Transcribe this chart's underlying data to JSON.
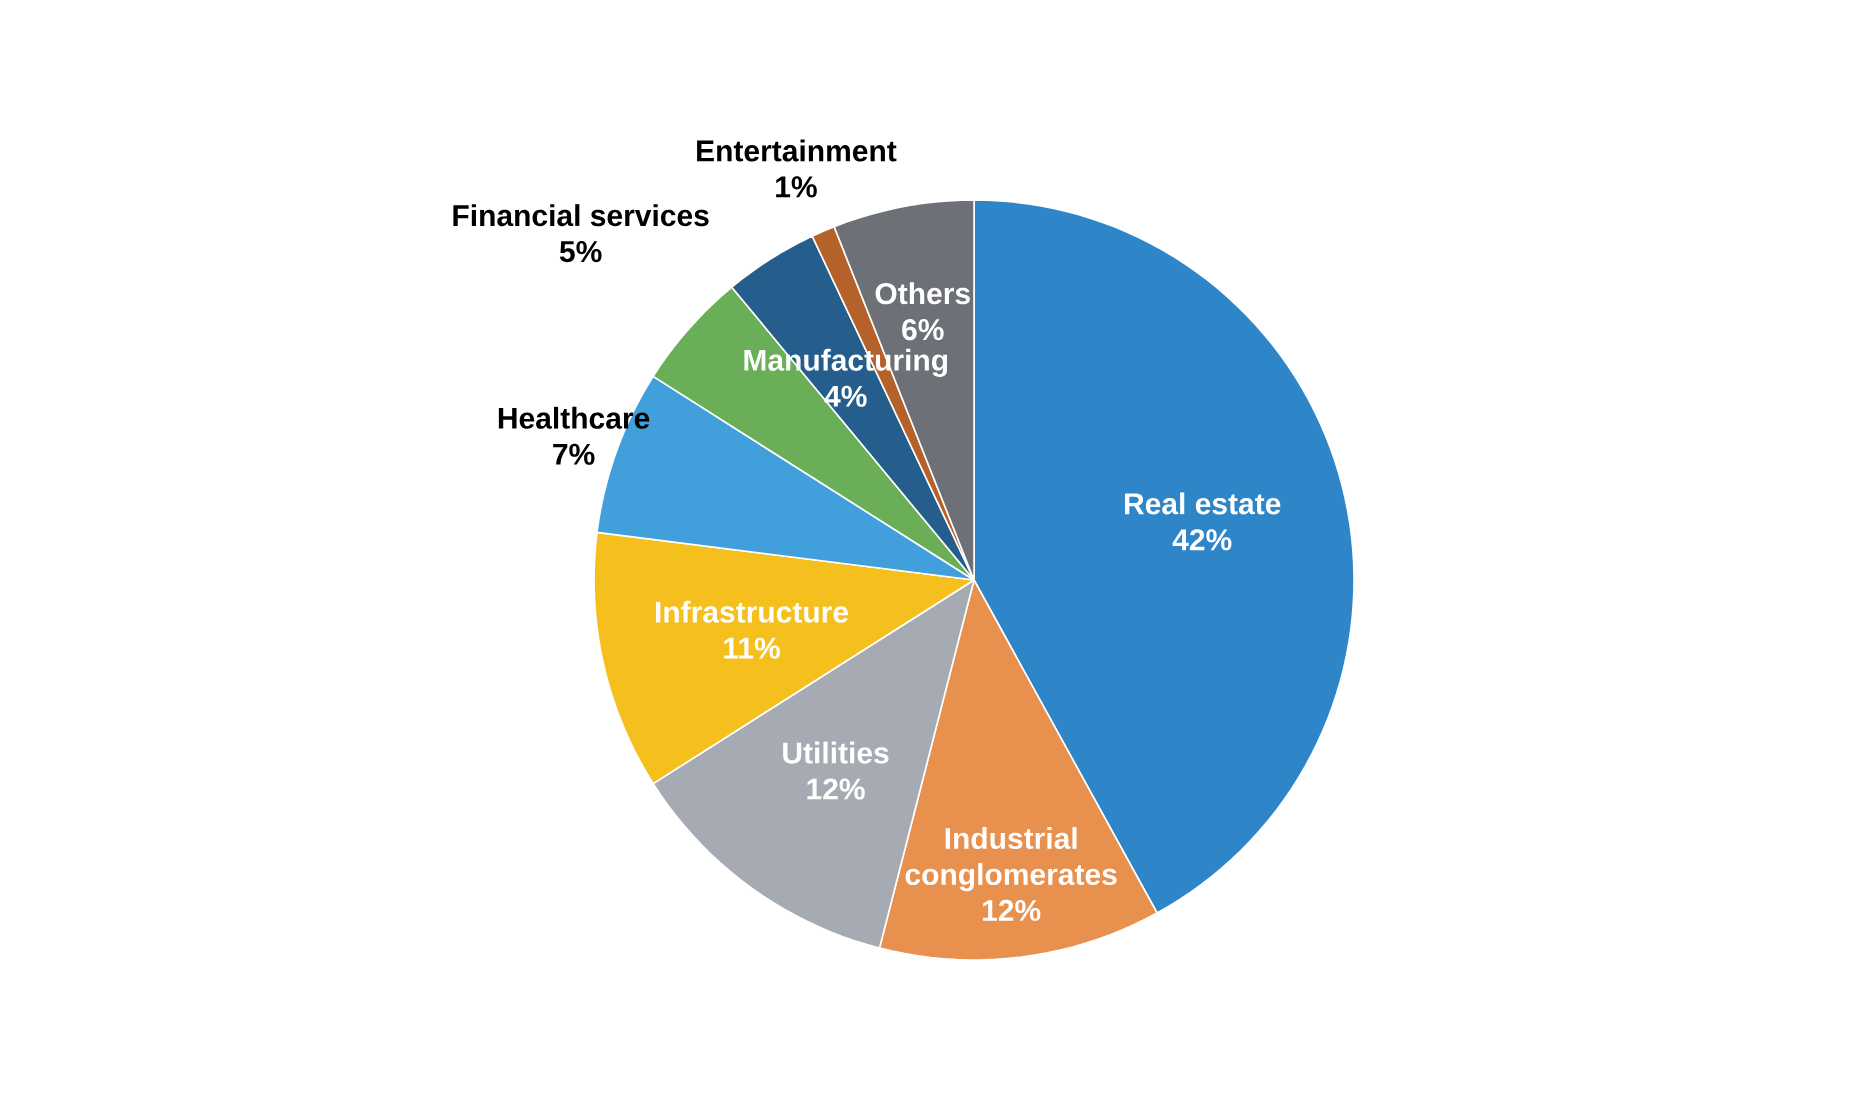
{
  "chart_data": {
    "type": "pie",
    "categories": [
      "Real estate",
      "Industrial conglomerates",
      "Utilities",
      "Infrastructure",
      "Healthcare",
      "Financial services",
      "Manufacturing",
      "Entertainment",
      "Others"
    ],
    "values": [
      42,
      12,
      12,
      11,
      7,
      5,
      4,
      1,
      6
    ],
    "colors": [
      "#2e86c8",
      "#e8914f",
      "#a6abb3",
      "#f5bf1e",
      "#41a0dc",
      "#6aaf57",
      "#255e8c",
      "#b5612a",
      "#6d7177"
    ],
    "value_labels": [
      "42%",
      "12%",
      "12%",
      "11%",
      "7%",
      "5%",
      "4%",
      "1%",
      "6%"
    ]
  }
}
